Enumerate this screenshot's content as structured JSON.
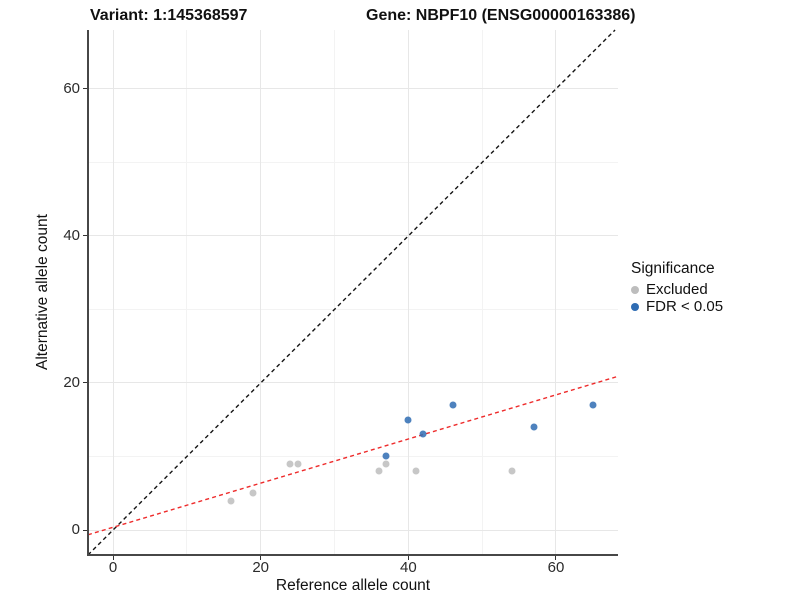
{
  "titles": {
    "variant": "Variant: 1:145368597",
    "gene": "Gene: NBPF10 (ENSG00000163386)"
  },
  "chart_data": {
    "type": "scatter",
    "title_left": "Variant: 1:145368597",
    "title_right": "Gene: NBPF10 (ENSG00000163386)",
    "xlabel": "Reference allele count",
    "ylabel": "Alternative allele count",
    "xlim": [
      -3.39,
      68.4
    ],
    "ylim": [
      -3.4,
      68.0
    ],
    "x_ticks": [
      0,
      20,
      40,
      60
    ],
    "y_ticks": [
      0,
      20,
      40,
      60
    ],
    "x_minor_gridlines": [
      10,
      30,
      50
    ],
    "y_minor_gridlines": [
      10,
      30,
      50
    ],
    "grid": true,
    "legend": {
      "title": "Significance",
      "position": "right",
      "items": [
        {
          "label": "Excluded",
          "color": "#bdbdbd"
        },
        {
          "label": "FDR < 0.05",
          "color": "#2f6cb3"
        }
      ]
    },
    "series": [
      {
        "name": "Excluded",
        "color": "#bdbdbd",
        "points": [
          [
            16,
            4
          ],
          [
            19,
            5
          ],
          [
            24,
            9
          ],
          [
            25,
            9
          ],
          [
            36,
            8
          ],
          [
            37,
            9
          ],
          [
            41,
            8
          ],
          [
            54,
            8
          ]
        ]
      },
      {
        "name": "FDR < 0.05",
        "color": "#2f6cb3",
        "points": [
          [
            37,
            10
          ],
          [
            40,
            15
          ],
          [
            42,
            13
          ],
          [
            46,
            17
          ],
          [
            57,
            14
          ],
          [
            65,
            17
          ]
        ]
      }
    ],
    "lines": [
      {
        "name": "identity-line",
        "style": "dashed",
        "color": "#141414",
        "x1": -3.39,
        "y1": -3.39,
        "x2": 68.0,
        "y2": 68.0
      },
      {
        "name": "fit-line",
        "style": "dashed",
        "color": "#ee2b2b",
        "x1": -3.39,
        "y1": -0.65,
        "x2": 68.4,
        "y2": 20.9
      }
    ]
  }
}
